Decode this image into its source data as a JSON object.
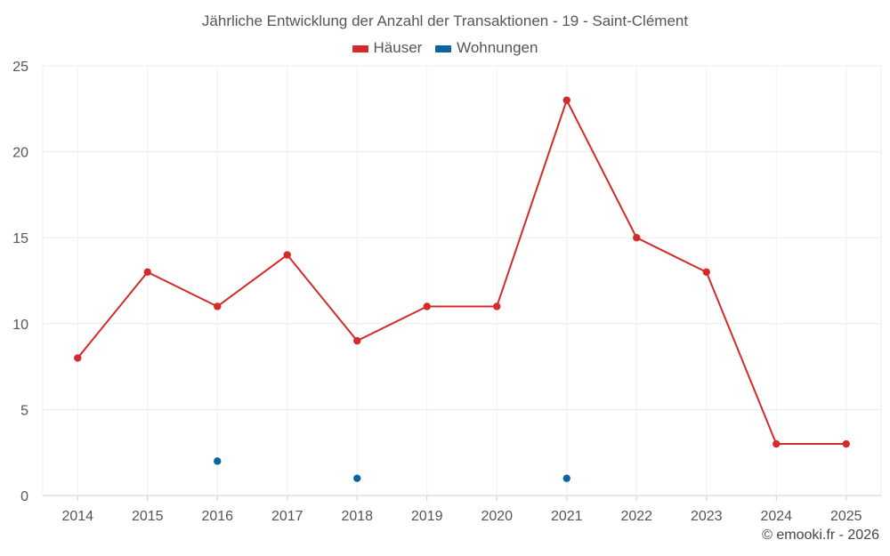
{
  "chart_data": {
    "type": "line",
    "title": "Jährliche Entwicklung der Anzahl der Transaktionen - 19 - Saint-Clément",
    "categories": [
      "2014",
      "2015",
      "2016",
      "2017",
      "2018",
      "2019",
      "2020",
      "2021",
      "2022",
      "2023",
      "2024",
      "2025"
    ],
    "series": [
      {
        "name": "Häuser",
        "color": "#d42a2a",
        "values": [
          8,
          13,
          11,
          14,
          9,
          11,
          11,
          23,
          15,
          13,
          3,
          3
        ]
      },
      {
        "name": "Wohnungen",
        "color": "#0a64a0",
        "values": [
          null,
          null,
          2,
          null,
          1,
          null,
          null,
          1,
          null,
          null,
          null,
          null
        ]
      }
    ],
    "ylim": [
      0,
      25
    ],
    "yticks": [
      0,
      5,
      10,
      15,
      20,
      25
    ],
    "grid": true,
    "legend_position": "top-center"
  },
  "credit": "© emooki.fr - 2026"
}
